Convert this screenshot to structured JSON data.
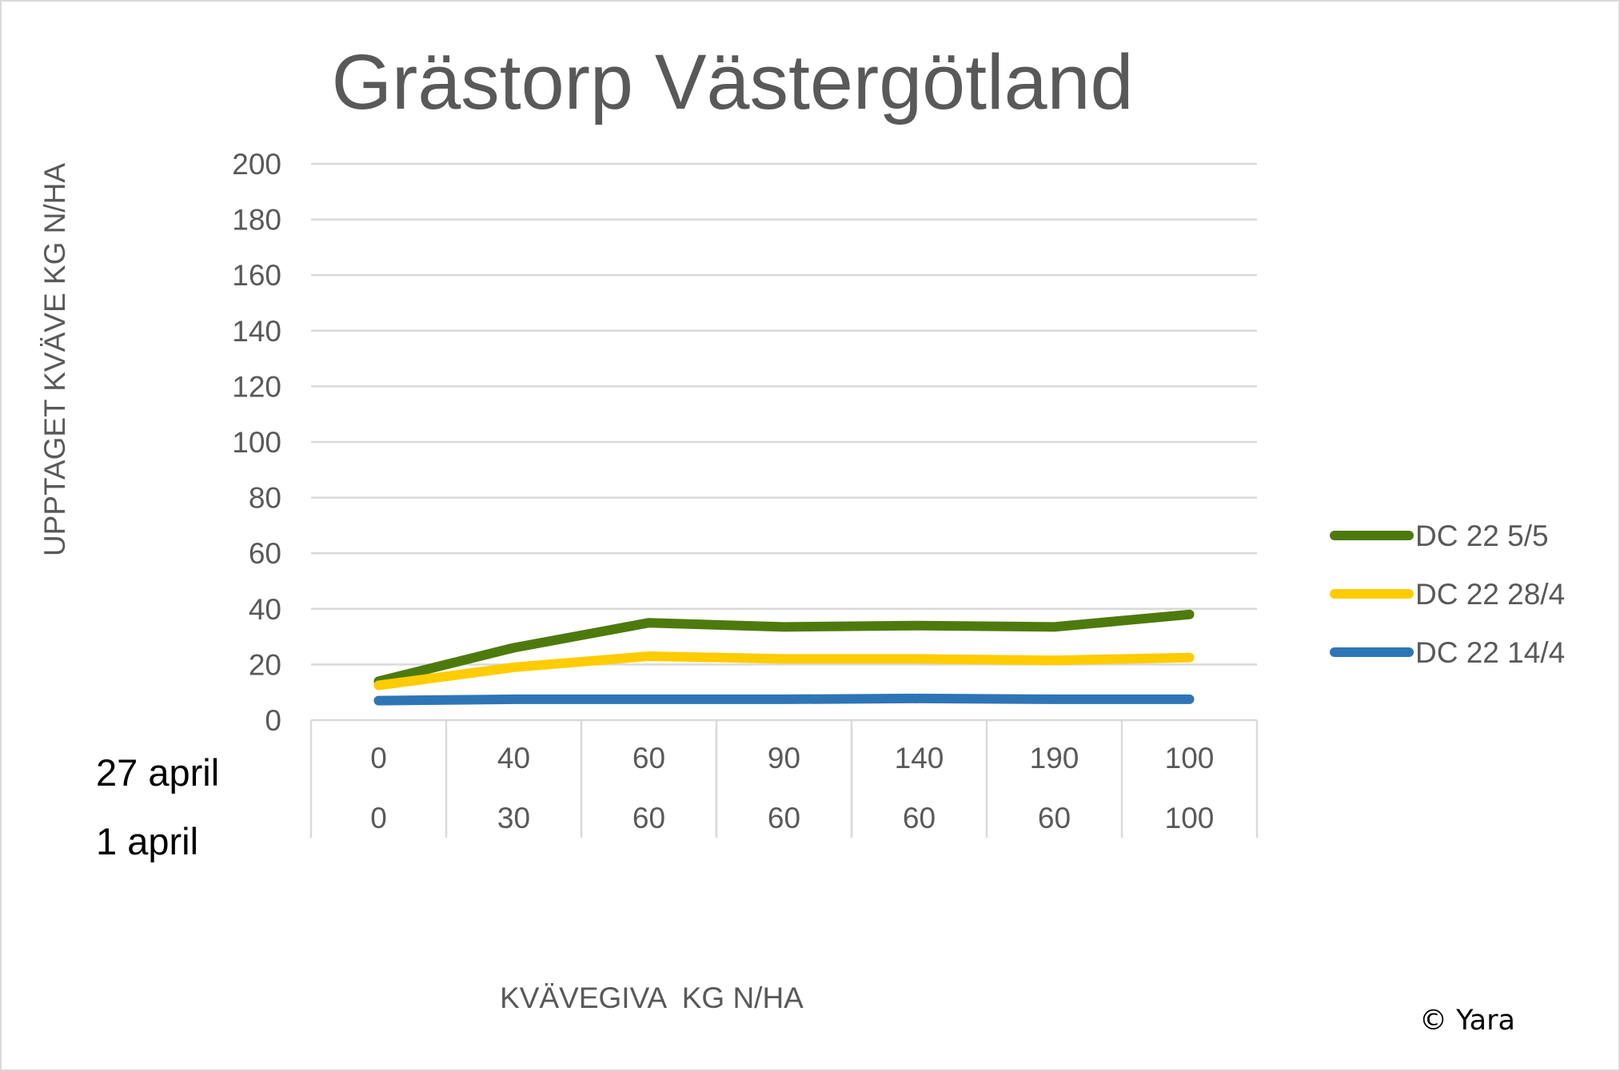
{
  "chart_data": {
    "type": "line",
    "title": "Grästorp Västergötland",
    "xlabel": "KVÄVEGIVA  KG N/HA",
    "ylabel": "UPPTAGET KVÄVE KG N/HA",
    "ylim": [
      0,
      200
    ],
    "yticks": [
      "0",
      "20",
      "40",
      "60",
      "80",
      "100",
      "120",
      "140",
      "160",
      "180",
      "200"
    ],
    "category_rows": [
      {
        "label": "27 april",
        "values": [
          "0",
          "40",
          "60",
          "90",
          "140",
          "190",
          "100"
        ]
      },
      {
        "label": "1 april",
        "values": [
          "0",
          "30",
          "60",
          "60",
          "60",
          "60",
          "100"
        ]
      }
    ],
    "grid": true,
    "legend_position": "right",
    "series": [
      {
        "name": "DC 22 5/5",
        "color": "#4e7a0d",
        "values": [
          14,
          26,
          35,
          33.5,
          34,
          33.5,
          38
        ]
      },
      {
        "name": "DC 22 28/4",
        "color": "#ffcc00",
        "values": [
          12.5,
          19,
          23,
          22,
          22,
          21.5,
          22.5
        ]
      },
      {
        "name": "DC 22 14/4",
        "color": "#2e75b6",
        "values": [
          7,
          7.5,
          7.5,
          7.5,
          7.8,
          7.5,
          7.5
        ]
      }
    ]
  },
  "footer": {
    "copyright": "© Yara"
  }
}
